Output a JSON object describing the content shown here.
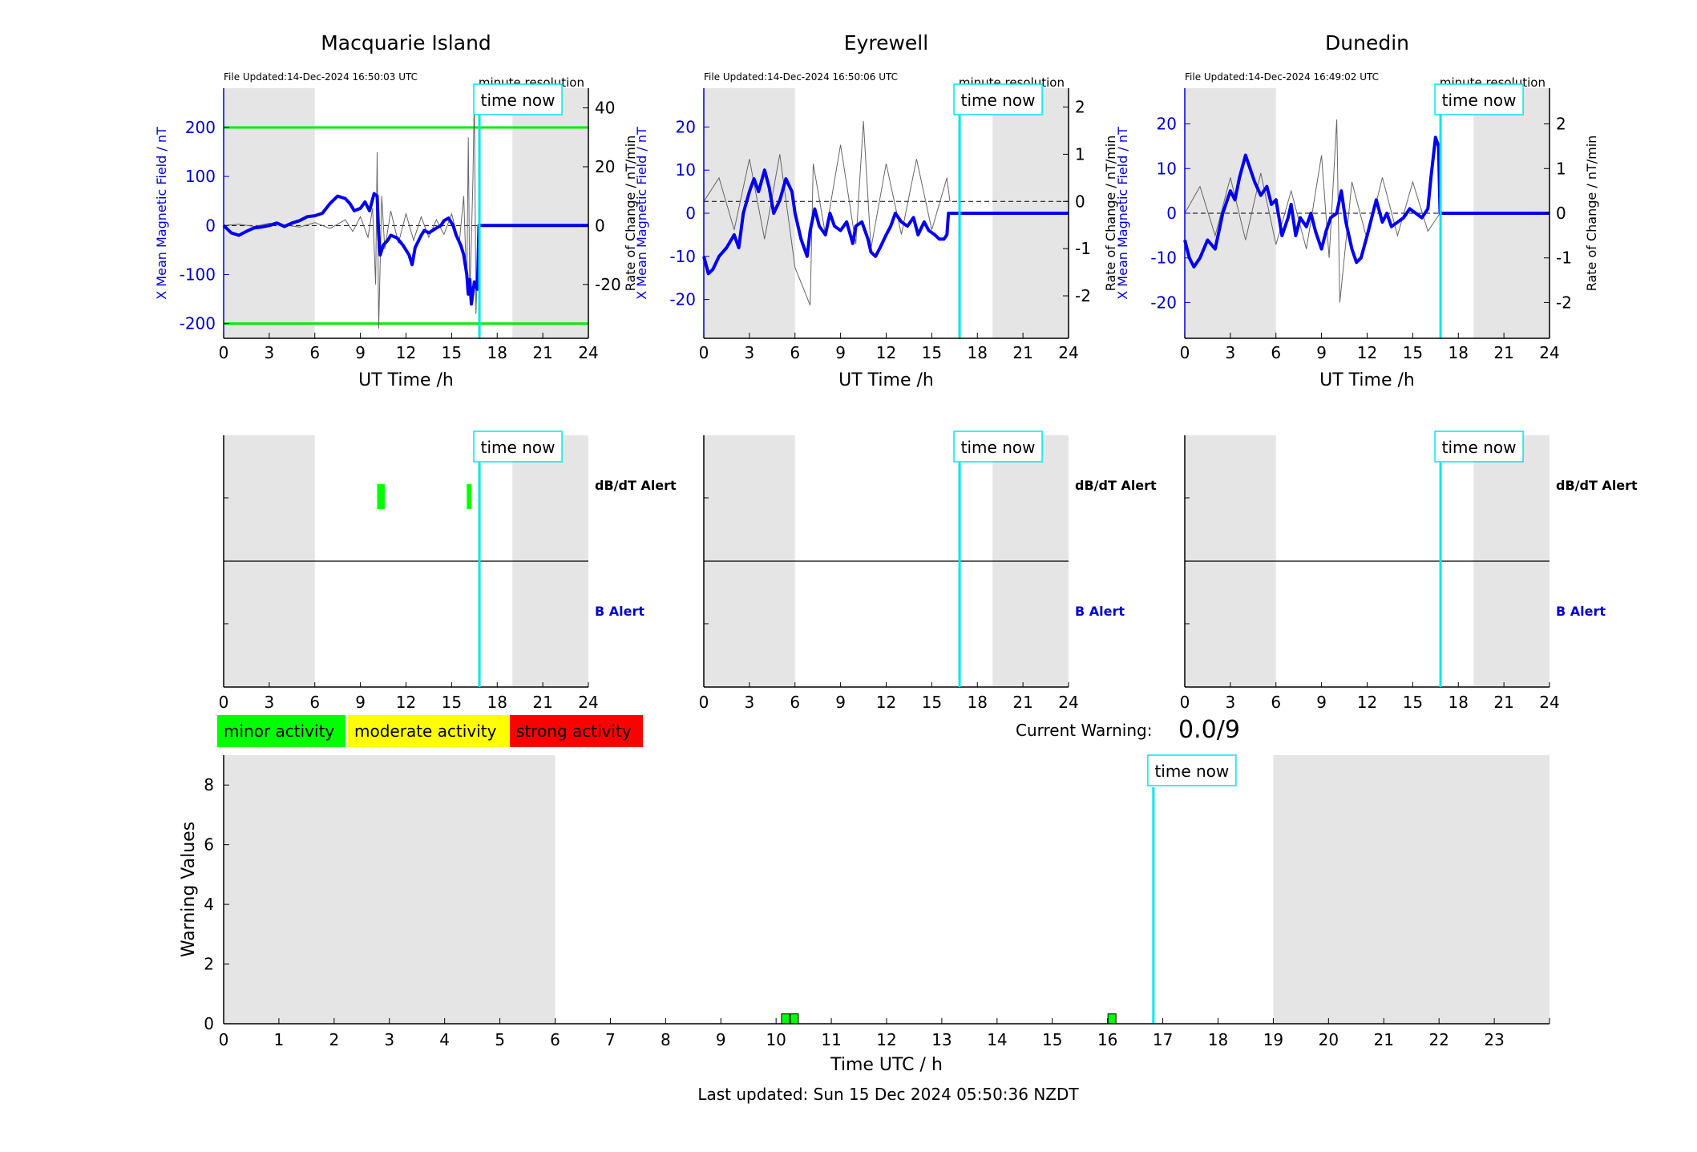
{
  "stations": [
    {
      "name": "Macquarie Island",
      "file_updated": "File Updated:14-Dec-2024 16:50:03 UTC",
      "resolution": "minute resolution",
      "time_now_label": "time now",
      "now_hour": 16.83,
      "ylabel_left": "X Mean Magnetic Field / nT",
      "ylabel_right": "Rate of Change / nT/min",
      "xlabel": "UT Time /h",
      "x_ticks": [
        "0",
        "3",
        "6",
        "9",
        "12",
        "15",
        "18",
        "21",
        "24"
      ],
      "y_left_range": [
        -230,
        280
      ],
      "y_left_ticks": [
        -200,
        -100,
        0,
        100,
        200
      ],
      "y_right_range": [
        -38.3,
        46.7
      ],
      "y_right_ticks": [
        -20,
        0,
        20,
        40
      ],
      "threshold_lines": [
        200,
        -200
      ],
      "night_shading": [
        [
          0,
          6
        ],
        [
          19,
          24
        ]
      ],
      "field_series": [
        [
          0,
          0
        ],
        [
          0.5,
          -15
        ],
        [
          1,
          -20
        ],
        [
          1.5,
          -12
        ],
        [
          2,
          -5
        ],
        [
          2.5,
          -3
        ],
        [
          3,
          0
        ],
        [
          3.5,
          5
        ],
        [
          4,
          -2
        ],
        [
          4.5,
          5
        ],
        [
          5,
          10
        ],
        [
          5.5,
          18
        ],
        [
          6,
          20
        ],
        [
          6.5,
          25
        ],
        [
          7,
          45
        ],
        [
          7.5,
          60
        ],
        [
          8,
          55
        ],
        [
          8.3,
          45
        ],
        [
          8.6,
          30
        ],
        [
          9,
          35
        ],
        [
          9.3,
          48
        ],
        [
          9.6,
          30
        ],
        [
          9.9,
          65
        ],
        [
          10.1,
          60
        ],
        [
          10.2,
          -20
        ],
        [
          10.3,
          -60
        ],
        [
          10.5,
          -40
        ],
        [
          10.8,
          -30
        ],
        [
          11,
          -20
        ],
        [
          11.4,
          -25
        ],
        [
          11.8,
          -40
        ],
        [
          12.2,
          -60
        ],
        [
          12.4,
          -80
        ],
        [
          12.6,
          -45
        ],
        [
          13,
          -20
        ],
        [
          13.2,
          -10
        ],
        [
          13.5,
          -15
        ],
        [
          14,
          -5
        ],
        [
          14.3,
          0
        ],
        [
          14.5,
          10
        ],
        [
          14.8,
          15
        ],
        [
          15.1,
          0
        ],
        [
          15.3,
          -20
        ],
        [
          15.6,
          -40
        ],
        [
          15.8,
          -60
        ],
        [
          16,
          -100
        ],
        [
          16.1,
          -140
        ],
        [
          16.2,
          -110
        ],
        [
          16.3,
          -160
        ],
        [
          16.5,
          -115
        ],
        [
          16.7,
          -130
        ],
        [
          16.8,
          0
        ],
        [
          24,
          0
        ]
      ],
      "rate_series": [
        [
          0,
          0
        ],
        [
          1,
          0.5
        ],
        [
          2,
          -0.3
        ],
        [
          3,
          0.8
        ],
        [
          4,
          0.2
        ],
        [
          5,
          -0.5
        ],
        [
          6,
          1
        ],
        [
          7,
          -1
        ],
        [
          8,
          2
        ],
        [
          8.5,
          -2
        ],
        [
          9,
          3
        ],
        [
          9.5,
          -4
        ],
        [
          9.8,
          6
        ],
        [
          10,
          -20
        ],
        [
          10.1,
          25
        ],
        [
          10.2,
          -35
        ],
        [
          10.4,
          10
        ],
        [
          10.6,
          -8
        ],
        [
          11,
          5
        ],
        [
          11.5,
          -6
        ],
        [
          12,
          4
        ],
        [
          12.5,
          -5
        ],
        [
          13,
          3
        ],
        [
          13.5,
          -4
        ],
        [
          14,
          2
        ],
        [
          14.5,
          -3
        ],
        [
          15,
          4
        ],
        [
          15.5,
          -6
        ],
        [
          15.8,
          10
        ],
        [
          16,
          -22
        ],
        [
          16.1,
          30
        ],
        [
          16.2,
          -25
        ],
        [
          16.4,
          15
        ],
        [
          16.5,
          45
        ],
        [
          16.6,
          -30
        ],
        [
          16.8,
          0
        ]
      ],
      "alerts": {
        "dbdt_label": "dB/dT Alert",
        "b_label": "B Alert",
        "dbdt_events": [
          [
            10.1,
            10.6
          ],
          [
            16.0,
            16.3
          ]
        ],
        "b_events": []
      }
    },
    {
      "name": "Eyrewell",
      "file_updated": "File Updated:14-Dec-2024 16:50:06 UTC",
      "resolution": "minute resolution",
      "time_now_label": "time now",
      "now_hour": 16.83,
      "ylabel_left": "X Mean Magnetic Field / nT",
      "ylabel_right": "Rate of Change / nT/min",
      "xlabel": "UT Time /h",
      "x_ticks": [
        "0",
        "3",
        "6",
        "9",
        "12",
        "15",
        "18",
        "21",
        "24"
      ],
      "y_left_range": [
        -29,
        29
      ],
      "y_left_ticks": [
        -20,
        -10,
        0,
        10,
        20
      ],
      "y_right_range": [
        -2.9,
        2.4
      ],
      "y_right_ticks": [
        -2,
        -1,
        0,
        1,
        2
      ],
      "threshold_lines": [],
      "night_shading": [
        [
          0,
          6
        ],
        [
          19,
          24
        ]
      ],
      "field_series": [
        [
          0,
          -10
        ],
        [
          0.3,
          -14
        ],
        [
          0.6,
          -13
        ],
        [
          1,
          -10
        ],
        [
          1.5,
          -8
        ],
        [
          2,
          -5
        ],
        [
          2.3,
          -8
        ],
        [
          2.6,
          0
        ],
        [
          3,
          5
        ],
        [
          3.3,
          8
        ],
        [
          3.6,
          5
        ],
        [
          4,
          10
        ],
        [
          4.3,
          6
        ],
        [
          4.6,
          0
        ],
        [
          5,
          3
        ],
        [
          5.4,
          8
        ],
        [
          5.8,
          5
        ],
        [
          6,
          0
        ],
        [
          6.4,
          -6
        ],
        [
          6.8,
          -10
        ],
        [
          7,
          -4
        ],
        [
          7.3,
          1
        ],
        [
          7.6,
          -3
        ],
        [
          8,
          -5
        ],
        [
          8.3,
          0
        ],
        [
          8.6,
          -3
        ],
        [
          9,
          -4
        ],
        [
          9.4,
          -2
        ],
        [
          9.8,
          -7
        ],
        [
          10,
          -3
        ],
        [
          10.4,
          -2
        ],
        [
          10.8,
          -6
        ],
        [
          11,
          -9
        ],
        [
          11.3,
          -10
        ],
        [
          11.6,
          -8
        ],
        [
          12,
          -5
        ],
        [
          12.3,
          -3
        ],
        [
          12.6,
          0
        ],
        [
          13,
          -2
        ],
        [
          13.4,
          -3
        ],
        [
          13.8,
          -1
        ],
        [
          14.1,
          -5
        ],
        [
          14.5,
          -2
        ],
        [
          14.8,
          -4
        ],
        [
          15.2,
          -5
        ],
        [
          15.5,
          -6
        ],
        [
          15.8,
          -6
        ],
        [
          16,
          -5
        ],
        [
          16.1,
          0
        ],
        [
          24,
          0
        ]
      ],
      "rate_series": [
        [
          0,
          0
        ],
        [
          1,
          0.5
        ],
        [
          2,
          -0.6
        ],
        [
          3,
          0.9
        ],
        [
          4,
          -0.8
        ],
        [
          5,
          1
        ],
        [
          6,
          -1.4
        ],
        [
          7,
          -2.2
        ],
        [
          7.2,
          0.8
        ],
        [
          8,
          -0.7
        ],
        [
          9,
          1.2
        ],
        [
          10,
          -0.9
        ],
        [
          10.5,
          1.7
        ],
        [
          11,
          -1
        ],
        [
          12,
          0.8
        ],
        [
          13,
          -0.7
        ],
        [
          14,
          0.9
        ],
        [
          15,
          -0.6
        ],
        [
          16,
          0.5
        ],
        [
          16.2,
          0
        ]
      ],
      "alerts": {
        "dbdt_label": "dB/dT Alert",
        "b_label": "B Alert",
        "dbdt_events": [],
        "b_events": []
      }
    },
    {
      "name": "Dunedin",
      "file_updated": "File Updated:14-Dec-2024 16:49:02 UTC",
      "resolution": "minute resolution",
      "time_now_label": "time now",
      "now_hour": 16.83,
      "ylabel_left": "X Mean Magnetic Field / nT",
      "ylabel_right": "Rate of Change / nT/min",
      "xlabel": "UT Time /h",
      "x_ticks": [
        "0",
        "3",
        "6",
        "9",
        "12",
        "15",
        "18",
        "21",
        "24"
      ],
      "y_left_range": [
        -28,
        28
      ],
      "y_left_ticks": [
        -20,
        -10,
        0,
        10,
        20
      ],
      "y_right_range": [
        -2.8,
        2.8
      ],
      "y_right_ticks": [
        -2,
        -1,
        0,
        1,
        2
      ],
      "threshold_lines": [],
      "night_shading": [
        [
          0,
          6
        ],
        [
          19,
          24
        ]
      ],
      "field_series": [
        [
          0,
          -6
        ],
        [
          0.3,
          -10
        ],
        [
          0.6,
          -12
        ],
        [
          1,
          -10
        ],
        [
          1.5,
          -6
        ],
        [
          2,
          -8
        ],
        [
          2.5,
          0
        ],
        [
          3,
          5
        ],
        [
          3.3,
          3
        ],
        [
          3.6,
          8
        ],
        [
          4,
          13
        ],
        [
          4.3,
          10
        ],
        [
          4.6,
          7
        ],
        [
          5,
          4
        ],
        [
          5.4,
          6
        ],
        [
          5.7,
          2
        ],
        [
          6,
          3
        ],
        [
          6.4,
          -5
        ],
        [
          6.8,
          -1
        ],
        [
          7,
          2
        ],
        [
          7.3,
          -5
        ],
        [
          7.6,
          -1
        ],
        [
          8,
          -3
        ],
        [
          8.3,
          0
        ],
        [
          8.6,
          -4
        ],
        [
          9,
          -8
        ],
        [
          9.3,
          -4
        ],
        [
          9.6,
          -1
        ],
        [
          10,
          0
        ],
        [
          10.3,
          5
        ],
        [
          10.6,
          -2
        ],
        [
          11,
          -8
        ],
        [
          11.3,
          -11
        ],
        [
          11.6,
          -10
        ],
        [
          12,
          -5
        ],
        [
          12.3,
          -1
        ],
        [
          12.6,
          3
        ],
        [
          13,
          -2
        ],
        [
          13.3,
          0
        ],
        [
          13.6,
          -3
        ],
        [
          14,
          -2
        ],
        [
          14.4,
          -1
        ],
        [
          14.8,
          1
        ],
        [
          15.2,
          0
        ],
        [
          15.6,
          -1
        ],
        [
          16,
          1
        ],
        [
          16.2,
          8
        ],
        [
          16.5,
          17
        ],
        [
          16.7,
          15
        ],
        [
          16.8,
          0
        ],
        [
          24,
          0
        ]
      ],
      "rate_series": [
        [
          0,
          0
        ],
        [
          1,
          0.6
        ],
        [
          2,
          -0.5
        ],
        [
          3,
          0.8
        ],
        [
          4,
          -0.6
        ],
        [
          5,
          0.9
        ],
        [
          6,
          -0.7
        ],
        [
          7,
          0.5
        ],
        [
          8,
          -0.8
        ],
        [
          9,
          1.3
        ],
        [
          9.5,
          -1
        ],
        [
          10,
          2.1
        ],
        [
          10.2,
          -2
        ],
        [
          11,
          0.7
        ],
        [
          12,
          -0.6
        ],
        [
          13,
          0.8
        ],
        [
          14,
          -0.5
        ],
        [
          15,
          0.7
        ],
        [
          16,
          -0.4
        ],
        [
          16.8,
          0
        ]
      ],
      "alerts": {
        "dbdt_label": "dB/dT Alert",
        "b_label": "B Alert",
        "dbdt_events": [],
        "b_events": []
      }
    }
  ],
  "legend": {
    "minor": {
      "label": "minor activity",
      "color": "#00ff00"
    },
    "moderate": {
      "label": "moderate activity",
      "color": "#ffff00"
    },
    "strong": {
      "label": "strong activity",
      "color": "#ff0000"
    }
  },
  "current_warning": {
    "label": "Current Warning:",
    "value": "0.0/9"
  },
  "chart_data": {
    "type": "bar",
    "title": "",
    "xlabel": "Time UTC / h",
    "ylabel": "Warning Values",
    "x_ticks": [
      "0",
      "1",
      "2",
      "3",
      "4",
      "5",
      "6",
      "7",
      "8",
      "9",
      "10",
      "11",
      "12",
      "13",
      "14",
      "15",
      "16",
      "17",
      "18",
      "19",
      "20",
      "21",
      "22",
      "23"
    ],
    "xlim": [
      0,
      24
    ],
    "ylim": [
      0,
      9
    ],
    "y_ticks": [
      0,
      2,
      4,
      6,
      8
    ],
    "night_shading": [
      [
        0,
        6
      ],
      [
        19,
        24
      ]
    ],
    "now_hour": 16.83,
    "time_now_label": "time now",
    "bars": [
      {
        "x": 10.17,
        "value": 0.33,
        "color": "#00ff00"
      },
      {
        "x": 10.33,
        "value": 0.33,
        "color": "#00ff00"
      },
      {
        "x": 16.08,
        "value": 0.33,
        "color": "#00ff00"
      }
    ]
  },
  "footer": {
    "last_updated": "Last updated: Sun 15 Dec 2024 05:50:36 NZDT"
  },
  "colors": {
    "field_line": "#0000ee",
    "rate_line": "#666666",
    "now_line": "#00e5ee",
    "threshold": "#00ee00",
    "night": "#e5e5e5",
    "axis_blue": "#0000cc"
  }
}
